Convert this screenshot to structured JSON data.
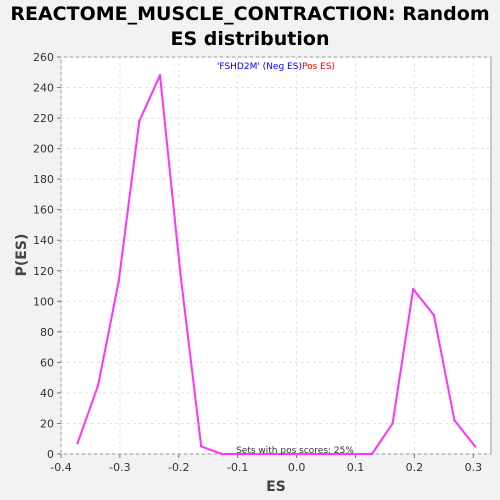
{
  "title_line1": "REACTOME_MUSCLE_CONTRACTION: Random",
  "title_line2": "ES distribution",
  "chart_data": {
    "type": "line",
    "xlabel": "ES",
    "ylabel": "P(ES)",
    "xlim": [
      -0.4,
      0.33
    ],
    "ylim": [
      0,
      260
    ],
    "xticks": [
      "-0.4",
      "-0.3",
      "-0.2",
      "-0.1",
      "0.0",
      "0.1",
      "0.2",
      "0.3"
    ],
    "xtick_values": [
      -0.4,
      -0.3,
      -0.2,
      -0.1,
      0.0,
      0.1,
      0.2,
      0.3
    ],
    "yticks": [
      "0",
      "20",
      "40",
      "60",
      "80",
      "100",
      "120",
      "140",
      "160",
      "180",
      "200",
      "220",
      "240",
      "260"
    ],
    "ytick_values": [
      0,
      20,
      40,
      60,
      80,
      100,
      120,
      140,
      160,
      180,
      200,
      220,
      240,
      260
    ],
    "grid": true,
    "legend": {
      "placement": "top-center",
      "prefix": "'FSHD2M' (",
      "neg_label": "Neg ES",
      "sep": ")",
      "pos_label": "Pos ES",
      "suffix": ")",
      "neg_color": "#0000ff",
      "pos_color": "#ff0000"
    },
    "annotation": "Sets with pos scores: 25%",
    "series": [
      {
        "color": "#ff33ff",
        "x": [
          -0.372,
          -0.337,
          -0.302,
          -0.267,
          -0.232,
          -0.197,
          -0.162,
          -0.127,
          -0.092,
          -0.057,
          -0.022,
          0.013,
          0.048,
          0.083,
          0.128,
          0.163,
          0.198,
          0.233,
          0.268,
          0.303
        ],
        "y": [
          7,
          45,
          113,
          218,
          248,
          117,
          5,
          0,
          0,
          0,
          0,
          0,
          0,
          0,
          0,
          20,
          108,
          91,
          22,
          5
        ]
      }
    ]
  }
}
